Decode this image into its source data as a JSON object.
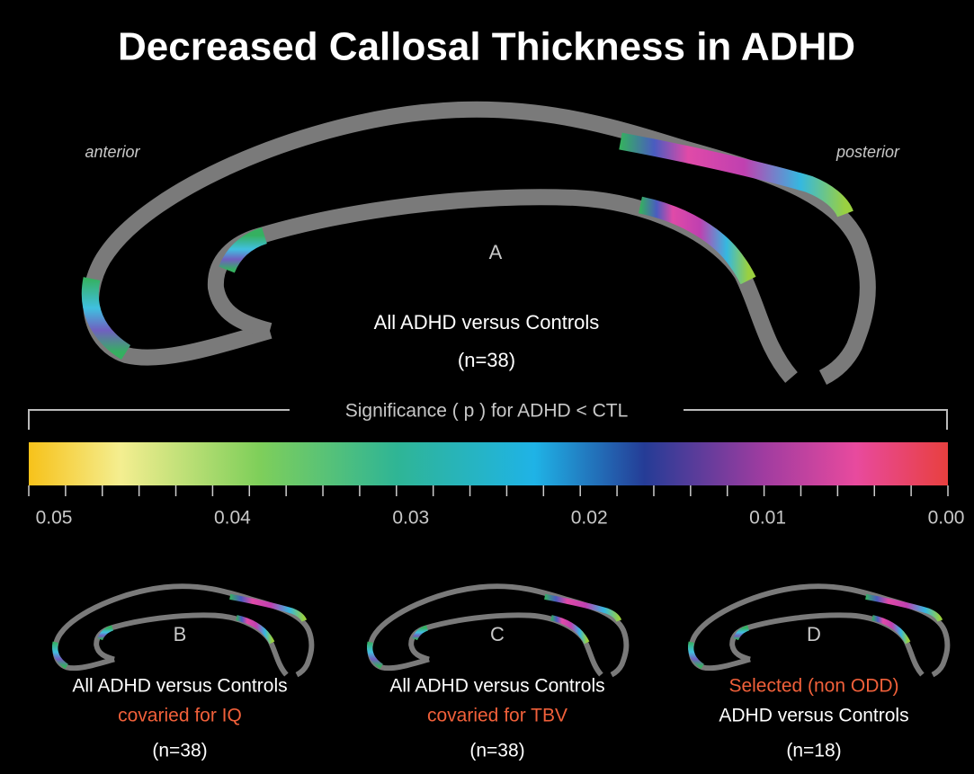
{
  "title": "Decreased Callosal Thickness in ADHD",
  "main_panel": {
    "left_label": "anterior",
    "right_label": "posterior",
    "letter": "A",
    "caption": "All ADHD versus Controls",
    "n": "(n=38)"
  },
  "colorbar": {
    "label": "Significance ( p ) for ADHD < CTL",
    "ticks": [
      "0.05",
      "0.04",
      "0.03",
      "0.02",
      "0.01",
      "0.00"
    ]
  },
  "panels": [
    {
      "letter": "B",
      "line1": "All ADHD versus Controls",
      "line2": "covaried for IQ",
      "n": "(n=38)"
    },
    {
      "letter": "C",
      "line1": "All ADHD versus Controls",
      "line2": "covaried for TBV",
      "n": "(n=38)"
    },
    {
      "letter": "D",
      "line1": "Selected (non ODD)",
      "line2": "ADHD versus Controls",
      "n": "(n=18)"
    }
  ]
}
